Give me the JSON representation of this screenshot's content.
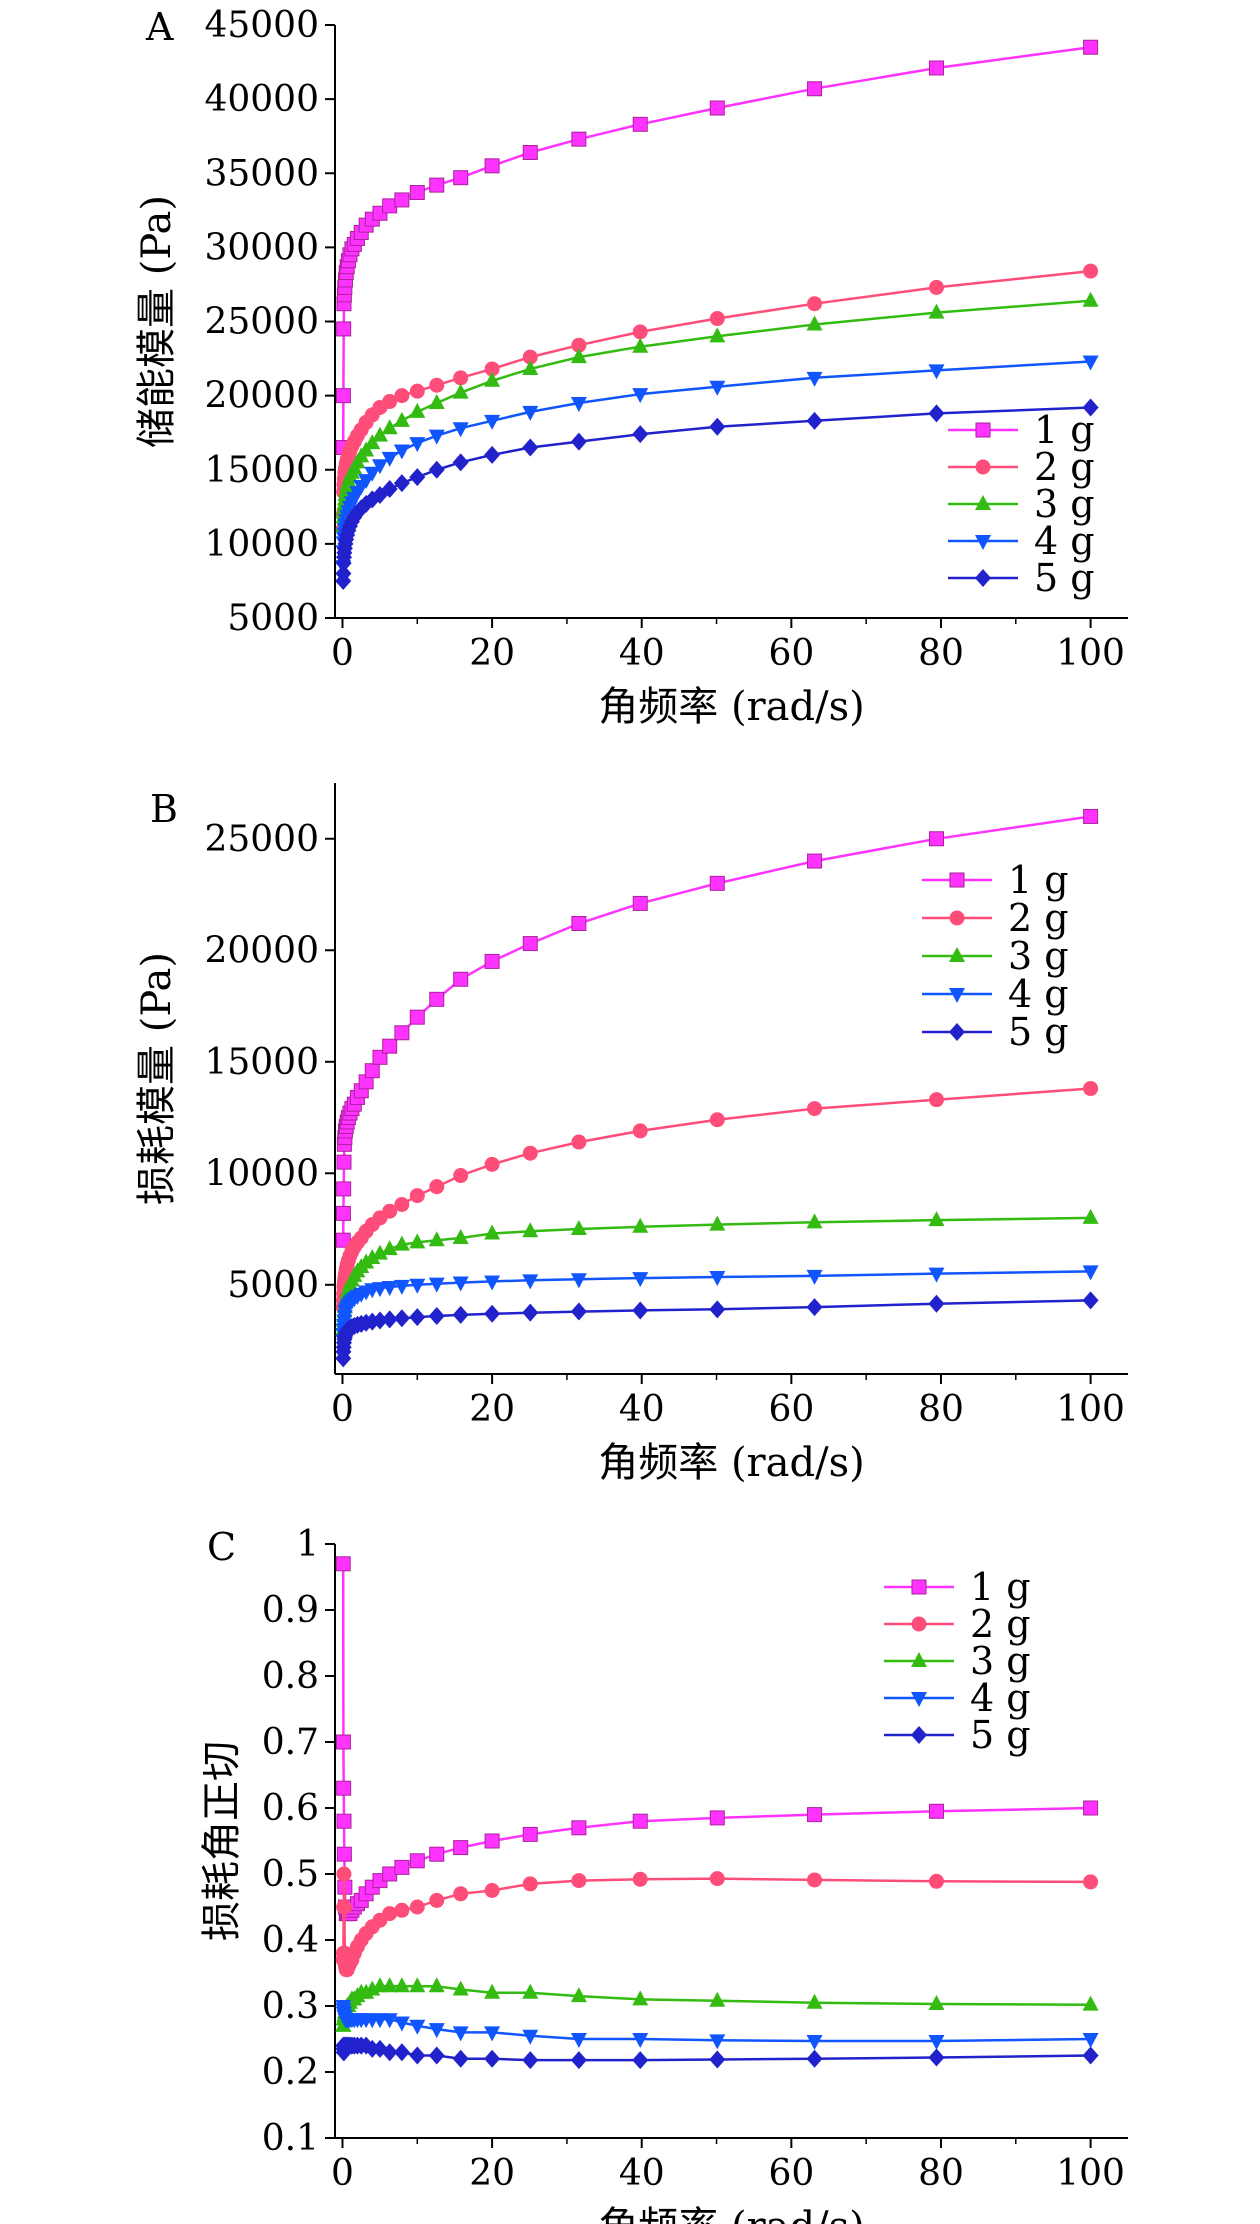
{
  "chart_data": [
    {
      "panel": "A",
      "type": "line",
      "xlabel": "角频率 (rad/s)",
      "ylabel": "储能模量 (Pa)",
      "xlim": [
        -1,
        105
      ],
      "ylim": [
        5000,
        45000
      ],
      "xticks": [
        0,
        20,
        40,
        60,
        80,
        100
      ],
      "yticks": [
        5000,
        10000,
        15000,
        20000,
        25000,
        30000,
        35000,
        40000,
        45000
      ],
      "x": [
        0.1,
        0.126,
        0.158,
        0.2,
        0.251,
        0.316,
        0.398,
        0.501,
        0.631,
        0.794,
        1,
        1.26,
        1.58,
        2,
        2.51,
        3.16,
        3.98,
        5.01,
        6.31,
        7.94,
        10,
        12.6,
        15.8,
        20,
        25.1,
        31.6,
        39.8,
        50.1,
        63.1,
        79.4,
        100
      ],
      "series": [
        {
          "name": "1 g",
          "color": "#ff33ff",
          "marker": "square",
          "values": [
            16500,
            20000,
            24500,
            26200,
            26800,
            27300,
            27800,
            28300,
            28700,
            29100,
            29500,
            29900,
            30200,
            30600,
            31000,
            31500,
            31900,
            32300,
            32800,
            33200,
            33700,
            34200,
            34700,
            35500,
            36400,
            37300,
            38300,
            39400,
            40700,
            42100,
            43500
          ]
        },
        {
          "name": "2 g",
          "color": "#ff4d7a",
          "marker": "circle",
          "values": [
            11000,
            12000,
            13500,
            14000,
            14400,
            14800,
            15100,
            15400,
            15700,
            16000,
            16300,
            16600,
            16900,
            17300,
            17700,
            18200,
            18700,
            19200,
            19600,
            20000,
            20300,
            20700,
            21200,
            21800,
            22600,
            23400,
            24300,
            25200,
            26200,
            27300,
            28400
          ]
        },
        {
          "name": "3 g",
          "color": "#33bb11",
          "marker": "triangle-up",
          "values": [
            11200,
            11800,
            12100,
            12400,
            12700,
            13000,
            13300,
            13600,
            13900,
            14200,
            14500,
            14800,
            15100,
            15500,
            15900,
            16300,
            16800,
            17300,
            17800,
            18300,
            18900,
            19500,
            20200,
            21000,
            21800,
            22600,
            23300,
            24000,
            24800,
            25600,
            26400
          ]
        },
        {
          "name": "4 g",
          "color": "#1155ff",
          "marker": "triangle-down",
          "values": [
            8500,
            9500,
            10100,
            10400,
            10700,
            11000,
            11300,
            11600,
            11900,
            12200,
            12500,
            12800,
            13100,
            13500,
            13900,
            14300,
            14800,
            15300,
            15800,
            16300,
            16800,
            17300,
            17800,
            18300,
            18900,
            19500,
            20100,
            20600,
            21200,
            21700,
            22300
          ]
        },
        {
          "name": "5 g",
          "color": "#2222cc",
          "marker": "diamond",
          "values": [
            7500,
            8000,
            8700,
            9100,
            9400,
            9700,
            10000,
            10300,
            10600,
            10900,
            11200,
            11500,
            11800,
            12100,
            12400,
            12700,
            13000,
            13300,
            13700,
            14100,
            14500,
            15000,
            15500,
            16000,
            16500,
            16900,
            17400,
            17900,
            18300,
            18800,
            19200
          ]
        }
      ],
      "legend": "inside, right-bottom"
    },
    {
      "panel": "B",
      "type": "line",
      "xlabel": "角频率 (rad/s)",
      "ylabel": "损耗模量 (Pa)",
      "xlim": [
        -1,
        105
      ],
      "ylim": [
        1000,
        27500
      ],
      "xticks": [
        0,
        20,
        40,
        60,
        80,
        100
      ],
      "yticks": [
        5000,
        10000,
        15000,
        20000,
        25000
      ],
      "x": [
        0.1,
        0.126,
        0.158,
        0.2,
        0.251,
        0.316,
        0.398,
        0.501,
        0.631,
        0.794,
        1,
        1.26,
        1.58,
        2,
        2.51,
        3.16,
        3.98,
        5.01,
        6.31,
        7.94,
        10,
        12.6,
        15.8,
        20,
        25.1,
        31.6,
        39.8,
        50.1,
        63.1,
        79.4,
        100
      ],
      "series": [
        {
          "name": "1 g",
          "color": "#ff33ff",
          "marker": "square",
          "values": [
            7000,
            8200,
            9300,
            10500,
            11300,
            11600,
            11900,
            12100,
            12300,
            12500,
            12700,
            12900,
            13100,
            13400,
            13700,
            14100,
            14600,
            15200,
            15700,
            16300,
            17000,
            17800,
            18700,
            19500,
            20300,
            21200,
            22100,
            23000,
            24000,
            25000,
            26000
          ]
        },
        {
          "name": "2 g",
          "color": "#ff4d7a",
          "marker": "circle",
          "values": [
            4000,
            4300,
            4600,
            4900,
            5100,
            5300,
            5500,
            5700,
            5900,
            6100,
            6300,
            6500,
            6700,
            6900,
            7100,
            7400,
            7700,
            8000,
            8300,
            8600,
            9000,
            9400,
            9900,
            10400,
            10900,
            11400,
            11900,
            12400,
            12900,
            13300,
            13800
          ]
        },
        {
          "name": "3 g",
          "color": "#33bb11",
          "marker": "triangle-up",
          "values": [
            3000,
            3200,
            3400,
            3600,
            3800,
            4000,
            4200,
            4400,
            4600,
            4800,
            5000,
            5200,
            5400,
            5600,
            5800,
            6000,
            6200,
            6400,
            6600,
            6800,
            6900,
            7000,
            7100,
            7300,
            7400,
            7500,
            7600,
            7700,
            7800,
            7900,
            8000
          ]
        },
        {
          "name": "4 g",
          "color": "#1155ff",
          "marker": "triangle-down",
          "values": [
            2500,
            2800,
            3000,
            3200,
            3400,
            3600,
            3800,
            3900,
            4000,
            4100,
            4200,
            4300,
            4400,
            4500,
            4600,
            4700,
            4800,
            4850,
            4900,
            4950,
            5000,
            5050,
            5100,
            5150,
            5200,
            5250,
            5300,
            5350,
            5400,
            5500,
            5600
          ]
        },
        {
          "name": "5 g",
          "color": "#2222cc",
          "marker": "diamond",
          "values": [
            1700,
            2000,
            2200,
            2400,
            2550,
            2650,
            2750,
            2850,
            2950,
            3000,
            3050,
            3100,
            3150,
            3200,
            3250,
            3300,
            3350,
            3400,
            3450,
            3500,
            3550,
            3600,
            3650,
            3700,
            3750,
            3800,
            3850,
            3900,
            4000,
            4150,
            4300
          ]
        }
      ],
      "legend": "inside, top-right"
    },
    {
      "panel": "C",
      "type": "line",
      "xlabel": "角频率 (rad/s)",
      "ylabel": "损耗角正切",
      "xlim": [
        -1,
        105
      ],
      "ylim": [
        0.1,
        1.0
      ],
      "xticks": [
        0,
        20,
        40,
        60,
        80,
        100
      ],
      "yticks": [
        0.1,
        0.2,
        0.3,
        0.4,
        0.5,
        0.6,
        0.7,
        0.8,
        0.9,
        1.0
      ],
      "x": [
        0.1,
        0.126,
        0.158,
        0.2,
        0.251,
        0.316,
        0.398,
        0.501,
        0.631,
        0.794,
        1,
        1.26,
        1.58,
        2,
        2.51,
        3.16,
        3.98,
        5.01,
        6.31,
        7.94,
        10,
        12.6,
        15.8,
        20,
        25.1,
        31.6,
        39.8,
        50.1,
        63.1,
        79.4,
        100
      ],
      "series": [
        {
          "name": "1 g",
          "color": "#ff33ff",
          "marker": "square",
          "values": [
            0.97,
            0.7,
            0.63,
            0.58,
            0.53,
            0.48,
            0.45,
            0.44,
            0.44,
            0.44,
            0.44,
            0.445,
            0.45,
            0.455,
            0.46,
            0.47,
            0.48,
            0.49,
            0.5,
            0.51,
            0.52,
            0.53,
            0.54,
            0.55,
            0.56,
            0.57,
            0.58,
            0.585,
            0.59,
            0.595,
            0.6
          ]
        },
        {
          "name": "2 g",
          "color": "#ff4d7a",
          "marker": "circle",
          "values": [
            0.37,
            0.38,
            0.45,
            0.5,
            0.45,
            0.38,
            0.36,
            0.355,
            0.355,
            0.36,
            0.365,
            0.37,
            0.38,
            0.39,
            0.4,
            0.41,
            0.42,
            0.43,
            0.44,
            0.445,
            0.45,
            0.46,
            0.47,
            0.475,
            0.485,
            0.49,
            0.492,
            0.493,
            0.491,
            0.489,
            0.488
          ]
        },
        {
          "name": "3 g",
          "color": "#33bb11",
          "marker": "triangle-up",
          "values": [
            0.27,
            0.27,
            0.28,
            0.28,
            0.285,
            0.29,
            0.29,
            0.295,
            0.3,
            0.3,
            0.305,
            0.31,
            0.31,
            0.315,
            0.32,
            0.32,
            0.325,
            0.33,
            0.33,
            0.33,
            0.33,
            0.33,
            0.325,
            0.32,
            0.32,
            0.315,
            0.31,
            0.308,
            0.305,
            0.303,
            0.302
          ]
        },
        {
          "name": "4 g",
          "color": "#1155ff",
          "marker": "triangle-down",
          "values": [
            0.3,
            0.295,
            0.29,
            0.29,
            0.285,
            0.285,
            0.28,
            0.28,
            0.28,
            0.28,
            0.28,
            0.28,
            0.28,
            0.28,
            0.28,
            0.28,
            0.28,
            0.28,
            0.28,
            0.275,
            0.27,
            0.265,
            0.26,
            0.26,
            0.255,
            0.25,
            0.25,
            0.248,
            0.247,
            0.247,
            0.25
          ]
        },
        {
          "name": "5 g",
          "color": "#2222cc",
          "marker": "diamond",
          "values": [
            0.24,
            0.235,
            0.23,
            0.23,
            0.235,
            0.24,
            0.24,
            0.24,
            0.24,
            0.24,
            0.24,
            0.24,
            0.24,
            0.24,
            0.24,
            0.24,
            0.235,
            0.235,
            0.23,
            0.23,
            0.225,
            0.225,
            0.22,
            0.22,
            0.218,
            0.218,
            0.218,
            0.219,
            0.22,
            0.222,
            0.225
          ]
        }
      ],
      "legend": "inside, top-right"
    }
  ]
}
